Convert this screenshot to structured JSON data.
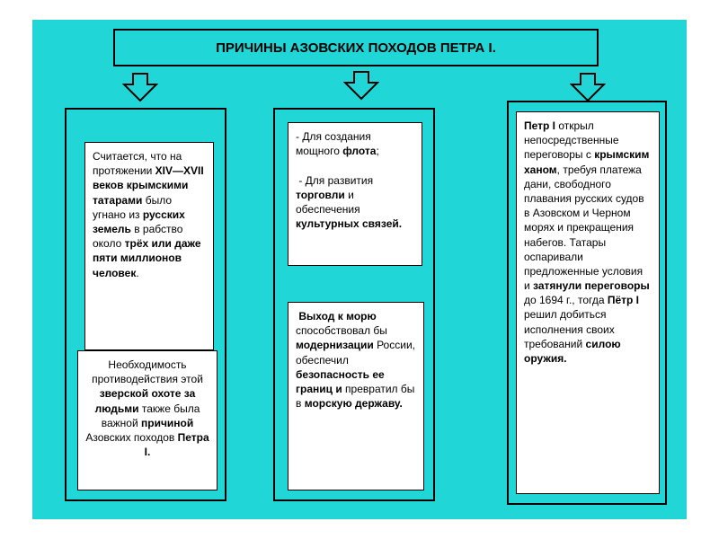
{
  "colors": {
    "background": "#21d6d6",
    "card_bg": "#ffffff",
    "border": "#000000",
    "text": "#000000"
  },
  "title": "ПРИЧИНЫ АЗОВСКИХ ПОХОДОВ ПЕТРА I.",
  "layout": {
    "type": "infographic",
    "columns": 3,
    "arrows": 3
  },
  "column1": {
    "card_a_html": "Считается, что на протяжении <b>XIV—XVII веков крымскими татарами</b> было угнано из <b>русских земель</b> в рабство около <b>трёх или даже пяти миллионов человек</b>.",
    "card_b_html": "Необходимость противодействия этой <b>зверской охоте за людьми</b> также была важной <b>причиной</b> Азовских походов <b>Петра I.</b>"
  },
  "column2": {
    "card_a_html": " - Для создания мощного <b>флота</b>;<br><br>&nbsp;- Для развития <b>торговли</b> и обеспечения <b>культурных связей.</b>",
    "card_b_html": "&nbsp;<b>Выход к морю</b> способствовал бы <b>модернизации</b> России, обеспечил <b>безопасность ее границ и</b> превратил бы в <b>морскую державу.</b>"
  },
  "column3": {
    "card_a_html": "<b>Петр I</b> открыл непосредственные переговоры с <b>крымским ханом</b>, требуя платежа дани, свободного плавания русских судов в Азовском и Черном морях и прекращения набегов. Татары оспаривали предложенные условия и <b>затянули переговоры</b> до 1694 г., тогда <b>Пётр I</b> решил добиться исполнения своих требований <b>силою оружия.</b>"
  }
}
